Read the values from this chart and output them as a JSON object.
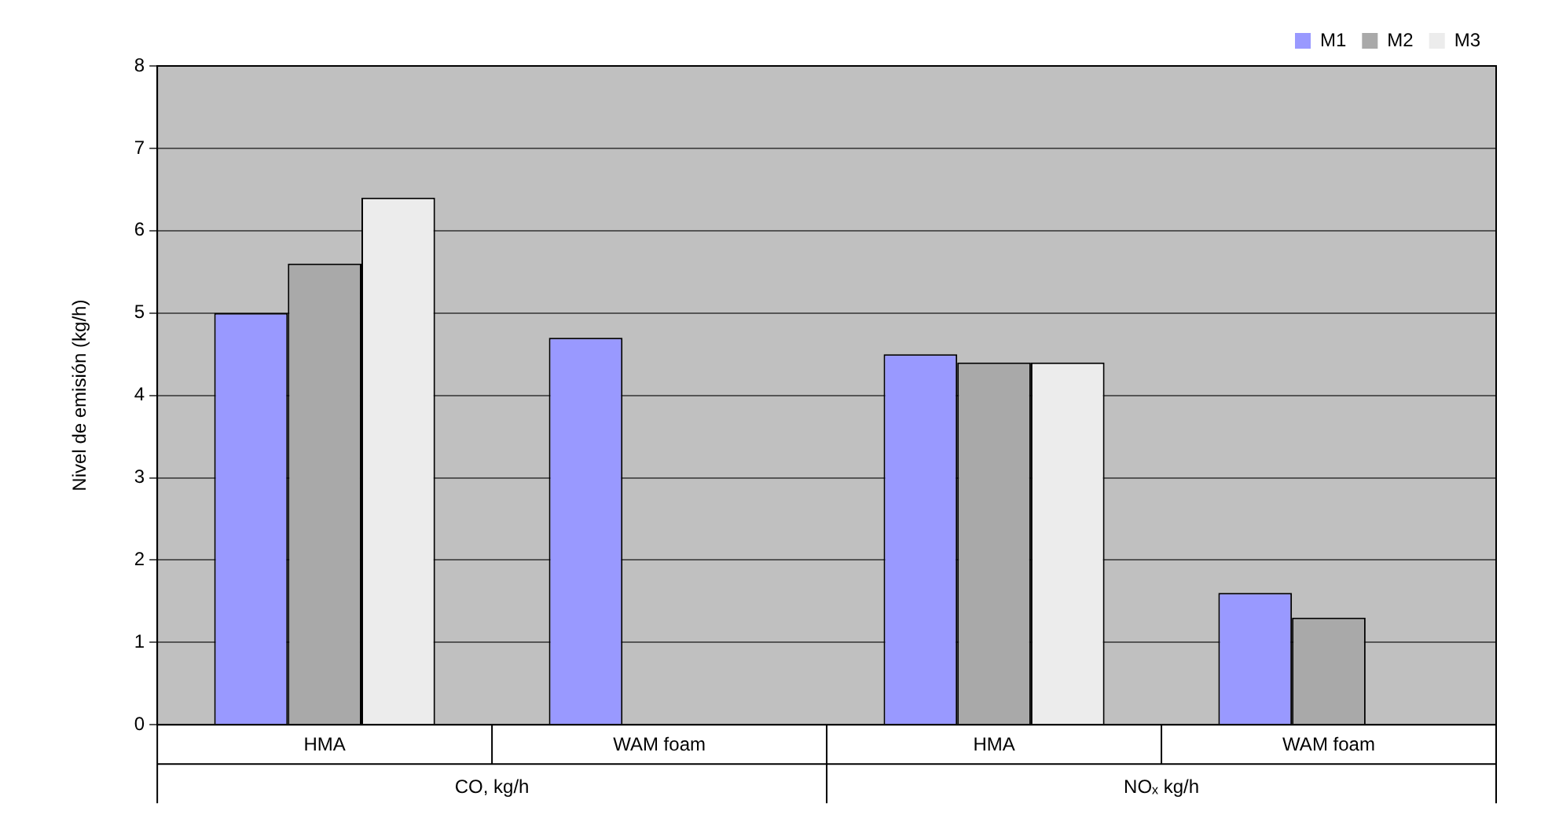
{
  "chart_data": {
    "type": "bar",
    "ylabel": "Nivel de emisión (kg/h)",
    "categories": [
      "HMA",
      "WAM foam",
      "HMA",
      "WAM foam"
    ],
    "series": [
      {
        "name": "M1",
        "color": "#9999ff",
        "values": [
          5.0,
          4.7,
          4.5,
          1.6
        ]
      },
      {
        "name": "M2",
        "color": "#a9a9a9",
        "values": [
          5.6,
          null,
          4.4,
          1.3
        ]
      },
      {
        "name": "M3",
        "color": "#ececec",
        "values": [
          6.4,
          null,
          4.4,
          null
        ]
      }
    ],
    "annotations": [
      "CO, kg/h",
      "NOₓ kg/h"
    ],
    "ylim": [
      0,
      8
    ],
    "yticks": [
      0,
      1,
      2,
      3,
      4,
      5,
      6,
      7,
      8
    ],
    "grid": "y",
    "legend": "top right"
  }
}
